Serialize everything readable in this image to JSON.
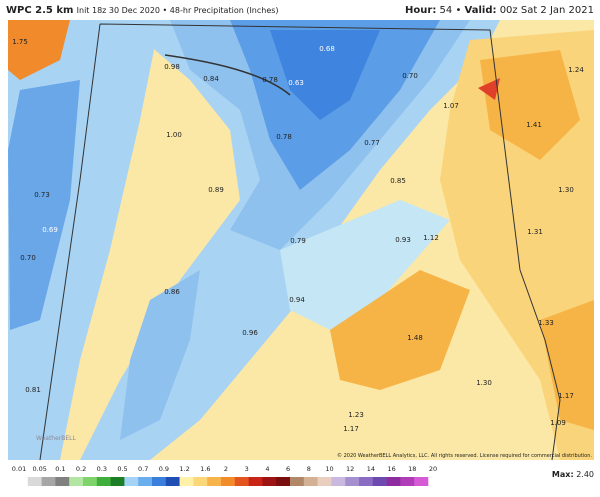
{
  "header": {
    "title": "WPC 2.5 km",
    "subtitle": "Init 18z 30 Dec 2020 • 48-hr Precipitation (Inches)",
    "hour_label": "Hour:",
    "hour": "54",
    "separator": "•",
    "valid_label": "Valid:",
    "valid": "00z Sat 2 Jan 2021"
  },
  "map": {
    "labels": [
      "1.75",
      "0.98",
      "0.84",
      "0.78",
      "0.68",
      "0.63",
      "0.70",
      "1.24",
      "1.07",
      "1.41",
      "1.00",
      "0.78",
      "0.77",
      "0.85",
      "0.89",
      "1.30",
      "0.73",
      "0.69",
      "0.79",
      "0.93",
      "1.12",
      "1.31",
      "0.70",
      "0.86",
      "0.94",
      "0.96",
      "1.48",
      "1.33",
      "0.81",
      "1.30",
      "1.17",
      "1.23",
      "1.17",
      "1.09"
    ],
    "logo": "WeatherBELL",
    "copyright": "© 2020 WeatherBELL Analytics, LLC. All rights reserved. License required for commercial distribution."
  },
  "colorbar": {
    "ticks": [
      "0.01",
      "0.05",
      "0.1",
      "0.2",
      "0.3",
      "0.5",
      "0.7",
      "0.9",
      "1.2",
      "1.6",
      "2",
      "3",
      "4",
      "6",
      "8",
      "10",
      "12",
      "14",
      "16",
      "18",
      "20"
    ],
    "max_label": "Max:",
    "max": "2.40"
  }
}
